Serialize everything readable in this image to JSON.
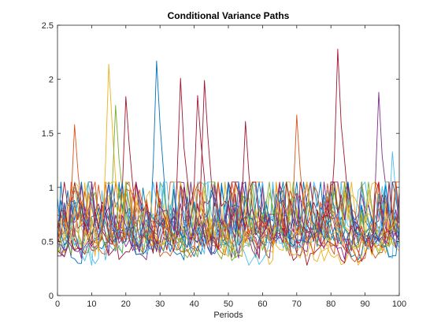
{
  "chart_data": {
    "type": "line",
    "title": "Conditional Variance Paths",
    "xlabel": "Periods",
    "ylabel": "",
    "xlim": [
      0,
      100
    ],
    "ylim": [
      0,
      2.5
    ],
    "xticks": [
      "0",
      "10",
      "20",
      "30",
      "40",
      "50",
      "60",
      "70",
      "80",
      "90",
      "100"
    ],
    "yticks": [
      "0",
      "0.5",
      "1",
      "1.5",
      "2",
      "2.5"
    ],
    "grid": false,
    "legend": "none",
    "colors": [
      "#0072BD",
      "#D95319",
      "#EDB120",
      "#7E2F8E",
      "#77AC30",
      "#4DBEEE",
      "#A2142F"
    ],
    "series_count": 25,
    "series_length": 101,
    "baseline_level": 0.55,
    "peaks": [
      {
        "x": 5,
        "y": 1.58,
        "color": "#D95319"
      },
      {
        "x": 15,
        "y": 2.14,
        "color": "#EDB120"
      },
      {
        "x": 17,
        "y": 1.76,
        "color": "#77AC30"
      },
      {
        "x": 20,
        "y": 1.84,
        "color": "#A2142F"
      },
      {
        "x": 29,
        "y": 2.17,
        "color": "#0072BD"
      },
      {
        "x": 36,
        "y": 2.01,
        "color": "#A2142F"
      },
      {
        "x": 41,
        "y": 1.85,
        "color": "#A2142F"
      },
      {
        "x": 43,
        "y": 1.99,
        "color": "#A2142F"
      },
      {
        "x": 55,
        "y": 1.61,
        "color": "#A2142F"
      },
      {
        "x": 70,
        "y": 1.67,
        "color": "#D95319"
      },
      {
        "x": 82,
        "y": 2.28,
        "color": "#A2142F"
      },
      {
        "x": 94,
        "y": 1.88,
        "color": "#7E2F8E"
      },
      {
        "x": 98,
        "y": 1.33,
        "color": "#4DBEEE"
      }
    ]
  }
}
